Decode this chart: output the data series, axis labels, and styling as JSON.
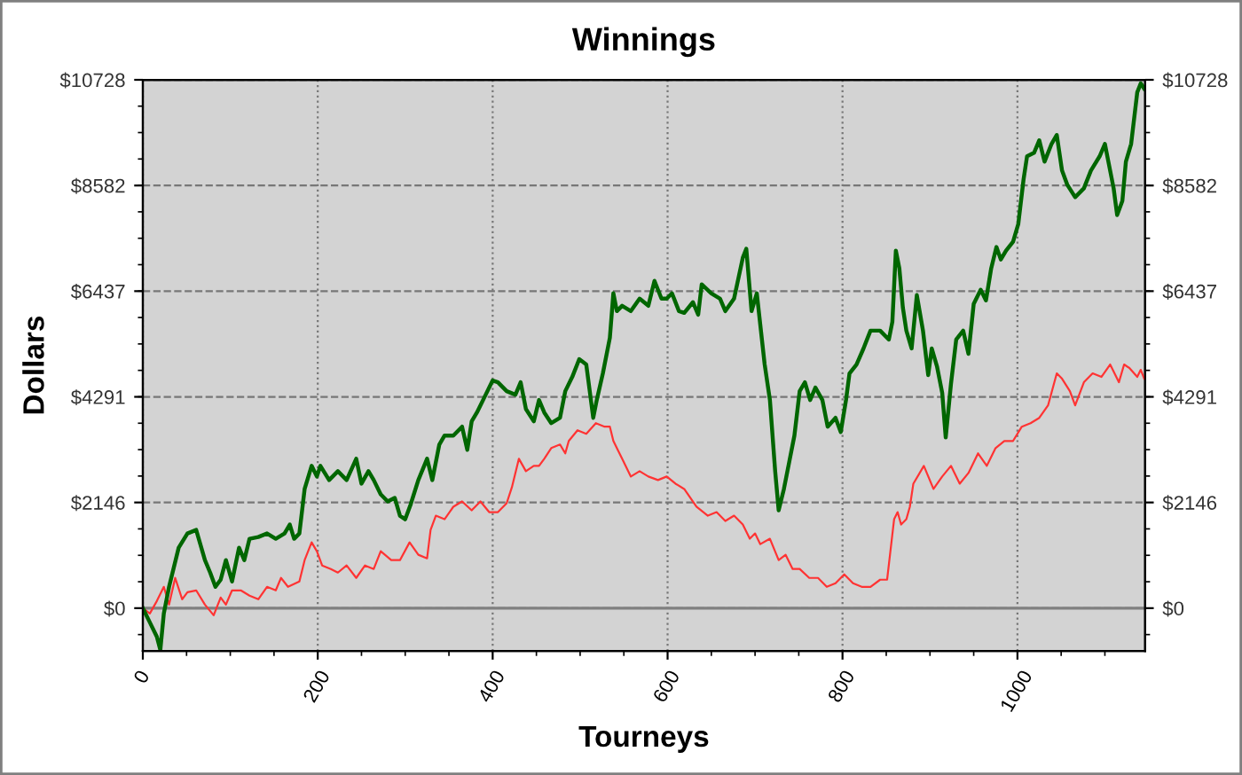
{
  "chart_data": {
    "type": "line",
    "title": "Winnings",
    "xlabel": "Tourneys",
    "ylabel": "Dollars",
    "xlim": [
      0,
      1146
    ],
    "xticks": [
      0,
      200,
      400,
      600,
      800,
      1000
    ],
    "ylim": [
      -870,
      10728
    ],
    "yticks": [
      {
        "value": 0,
        "label": "$0"
      },
      {
        "value": 2146,
        "label": "$2146"
      },
      {
        "value": 4291,
        "label": "$4291"
      },
      {
        "value": 6437,
        "label": "$6437"
      },
      {
        "value": 8582,
        "label": "$8582"
      },
      {
        "value": 10728,
        "label": "$10728"
      }
    ],
    "y2lim": [
      -870,
      10728
    ],
    "y2ticks": [
      {
        "value": 0,
        "label": "$0"
      },
      {
        "value": 2146,
        "label": "$2146"
      },
      {
        "value": 4291,
        "label": "$4291"
      },
      {
        "value": 6437,
        "label": "$6437"
      },
      {
        "value": 8582,
        "label": "$8582"
      },
      {
        "value": 10728,
        "label": "$10728"
      }
    ],
    "grid": true,
    "legend": false,
    "marker": "none",
    "line_style": "solid",
    "ref_lines": [
      {
        "axis": "y",
        "value": 0,
        "label": null,
        "color": "#808080"
      }
    ],
    "series": [
      {
        "color": "#ff3333",
        "x": [
          0,
          8,
          16,
          24,
          30,
          37,
          45,
          51,
          61,
          71,
          81,
          89,
          95,
          102,
          112,
          122,
          132,
          142,
          152,
          158,
          166,
          179,
          185,
          193,
          199,
          205,
          215,
          223,
          233,
          244,
          254,
          264,
          272,
          284,
          294,
          305,
          315,
          325,
          329,
          335,
          345,
          355,
          365,
          376,
          386,
          396,
          406,
          416,
          422,
          430,
          438,
          447,
          453,
          459,
          467,
          477,
          483,
          487,
          497,
          507,
          518,
          528,
          534,
          538,
          548,
          558,
          568,
          578,
          589,
          599,
          609,
          619,
          633,
          646,
          656,
          666,
          676,
          686,
          694,
          700,
          706,
          717,
          727,
          735,
          743,
          751,
          762,
          772,
          782,
          792,
          802,
          812,
          822,
          832,
          843,
          851,
          859,
          863,
          867,
          873,
          877,
          881,
          893,
          904,
          914,
          924,
          934,
          944,
          955,
          965,
          975,
          985,
          995,
          1005,
          1015,
          1025,
          1035,
          1045,
          1051,
          1060,
          1066,
          1076,
          1086,
          1096,
          1106,
          1116,
          1122,
          1128,
          1137,
          1141,
          1145
        ],
        "values": [
          0,
          -108,
          144,
          433,
          72,
          614,
          181,
          325,
          361,
          72,
          -144,
          217,
          72,
          361,
          361,
          253,
          181,
          433,
          361,
          614,
          433,
          542,
          975,
          1336,
          1156,
          867,
          795,
          722,
          867,
          614,
          867,
          795,
          1156,
          975,
          975,
          1336,
          1084,
          1011,
          1589,
          1878,
          1806,
          2059,
          2167,
          1986,
          2167,
          1950,
          1950,
          2131,
          2456,
          3034,
          2781,
          2890,
          2890,
          3034,
          3251,
          3323,
          3143,
          3395,
          3612,
          3540,
          3757,
          3685,
          3685,
          3395,
          3034,
          2673,
          2781,
          2673,
          2601,
          2673,
          2528,
          2420,
          2059,
          1878,
          1950,
          1770,
          1878,
          1698,
          1409,
          1517,
          1300,
          1409,
          975,
          1084,
          795,
          795,
          614,
          614,
          433,
          506,
          686,
          506,
          433,
          433,
          578,
          578,
          1806,
          1950,
          1698,
          1806,
          2059,
          2528,
          2890,
          2420,
          2673,
          2890,
          2528,
          2745,
          3143,
          2890,
          3251,
          3395,
          3395,
          3685,
          3757,
          3865,
          4117,
          4768,
          4659,
          4406,
          4117,
          4587,
          4768,
          4695,
          4948,
          4587,
          4948,
          4876,
          4695,
          4840,
          4659
        ]
      },
      {
        "color": "#006600",
        "x": [
          0,
          8,
          16,
          20,
          24,
          30,
          41,
          51,
          61,
          71,
          77,
          83,
          89,
          95,
          102,
          110,
          116,
          122,
          132,
          142,
          152,
          162,
          168,
          173,
          179,
          185,
          193,
          199,
          203,
          213,
          223,
          233,
          244,
          250,
          258,
          264,
          272,
          280,
          288,
          294,
          300,
          306,
          315,
          325,
          331,
          339,
          345,
          355,
          365,
          371,
          376,
          382,
          392,
          400,
          406,
          416,
          426,
          432,
          438,
          447,
          453,
          459,
          467,
          477,
          483,
          491,
          499,
          507,
          515,
          519,
          526,
          534,
          538,
          542,
          548,
          558,
          568,
          578,
          585,
          593,
          599,
          605,
          613,
          619,
          629,
          635,
          639,
          650,
          660,
          666,
          676,
          686,
          690,
          696,
          702,
          711,
          717,
          723,
          727,
          733,
          739,
          745,
          751,
          757,
          763,
          769,
          777,
          783,
          792,
          798,
          804,
          808,
          816,
          824,
          828,
          832,
          843,
          853,
          857,
          861,
          865,
          869,
          873,
          879,
          885,
          892,
          898,
          902,
          908,
          914,
          918,
          924,
          930,
          938,
          944,
          950,
          958,
          964,
          970,
          976,
          981,
          987,
          995,
          1001,
          1007,
          1011,
          1019,
          1025,
          1031,
          1039,
          1045,
          1051,
          1057,
          1066,
          1076,
          1084,
          1094,
          1100,
          1104,
          1110,
          1114,
          1120,
          1124,
          1130,
          1137,
          1141,
          1145
        ],
        "values": [
          0,
          -289,
          -578,
          -850,
          -108,
          433,
          1228,
          1517,
          1589,
          975,
          722,
          433,
          578,
          975,
          542,
          1228,
          975,
          1409,
          1445,
          1517,
          1409,
          1517,
          1698,
          1409,
          1517,
          2420,
          2890,
          2673,
          2890,
          2601,
          2781,
          2601,
          3034,
          2528,
          2781,
          2601,
          2312,
          2167,
          2239,
          1878,
          1806,
          2095,
          2601,
          3034,
          2601,
          3323,
          3504,
          3504,
          3685,
          3215,
          3793,
          3973,
          4334,
          4623,
          4587,
          4406,
          4334,
          4587,
          4045,
          3793,
          4226,
          3973,
          3757,
          3865,
          4406,
          4695,
          5057,
          4948,
          3865,
          4226,
          4768,
          5490,
          6393,
          6032,
          6140,
          6032,
          6285,
          6140,
          6646,
          6285,
          6285,
          6393,
          6032,
          5996,
          6213,
          5960,
          6574,
          6393,
          6285,
          6032,
          6285,
          7116,
          7296,
          6032,
          6393,
          4948,
          4226,
          2781,
          1986,
          2420,
          2962,
          3504,
          4406,
          4587,
          4226,
          4479,
          4226,
          3685,
          3865,
          3576,
          4226,
          4768,
          4948,
          5273,
          5454,
          5635,
          5635,
          5454,
          5815,
          7260,
          6899,
          6104,
          5635,
          5273,
          6357,
          5635,
          4732,
          5273,
          4912,
          4370,
          3468,
          4551,
          5454,
          5635,
          5165,
          6177,
          6466,
          6249,
          6899,
          7333,
          7080,
          7260,
          7441,
          7802,
          8705,
          9175,
          9247,
          9500,
          9066,
          9427,
          9608,
          8886,
          8597,
          8344,
          8525,
          8886,
          9175,
          9427,
          9066,
          8525,
          7983,
          8272,
          9066,
          9427,
          10474,
          10655,
          10547
        ]
      }
    ]
  }
}
